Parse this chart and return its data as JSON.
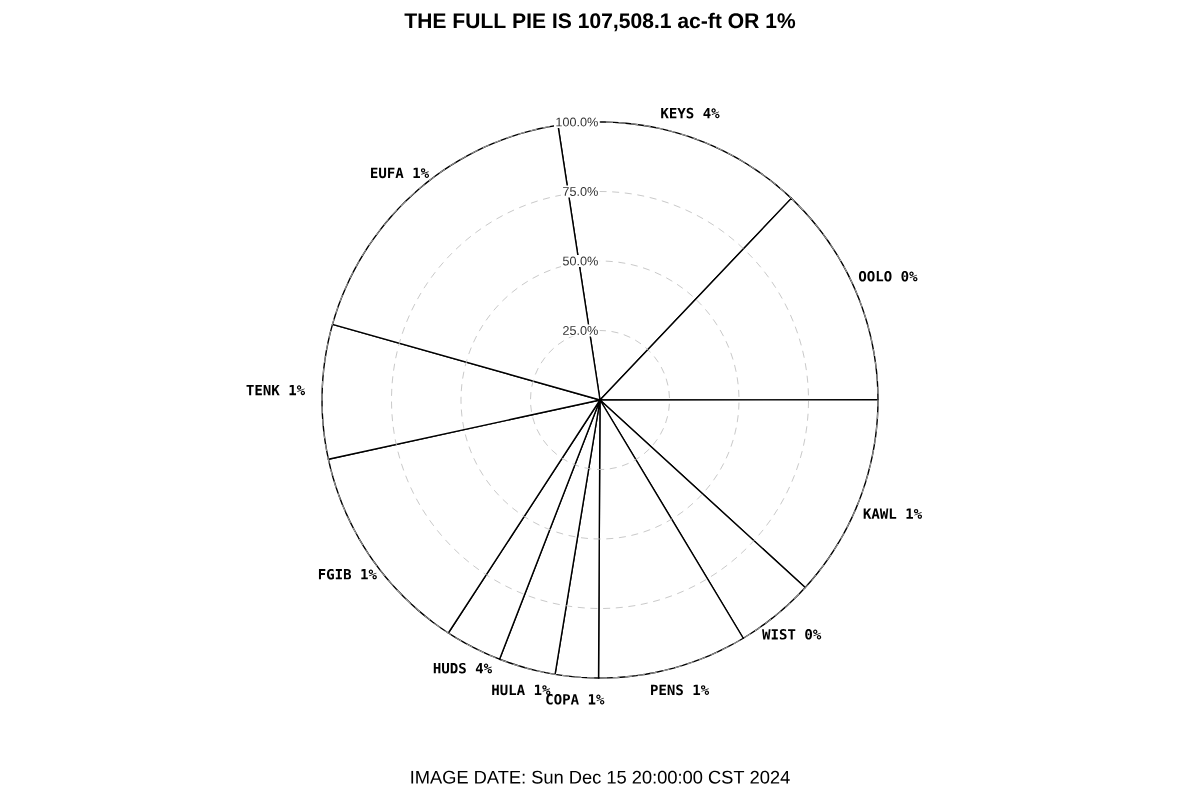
{
  "chart_data": {
    "type": "pie",
    "title": "THE FULL PIE IS 107,508.1 ac-ft OR 1%",
    "categories": [
      "KEYS 4%",
      "OOLO 0%",
      "KAWL 1%",
      "WIST 0%",
      "PENS 1%",
      "COPA 1%",
      "HULA 1%",
      "HUDS 4%",
      "FGIB 1%",
      "TENK 1%",
      "EUFA 1%"
    ],
    "values": [
      14.5,
      12.9,
      11.8,
      4.6,
      8.7,
      2.5,
      3.3,
      3.3,
      12.4,
      7.8,
      18.2
    ],
    "annotations": [
      "25.0%",
      "50.0%",
      "75.0%",
      "100.0%",
      "IMAGE DATE: Sun Dec 15 20:00:00 CST 2024"
    ]
  }
}
